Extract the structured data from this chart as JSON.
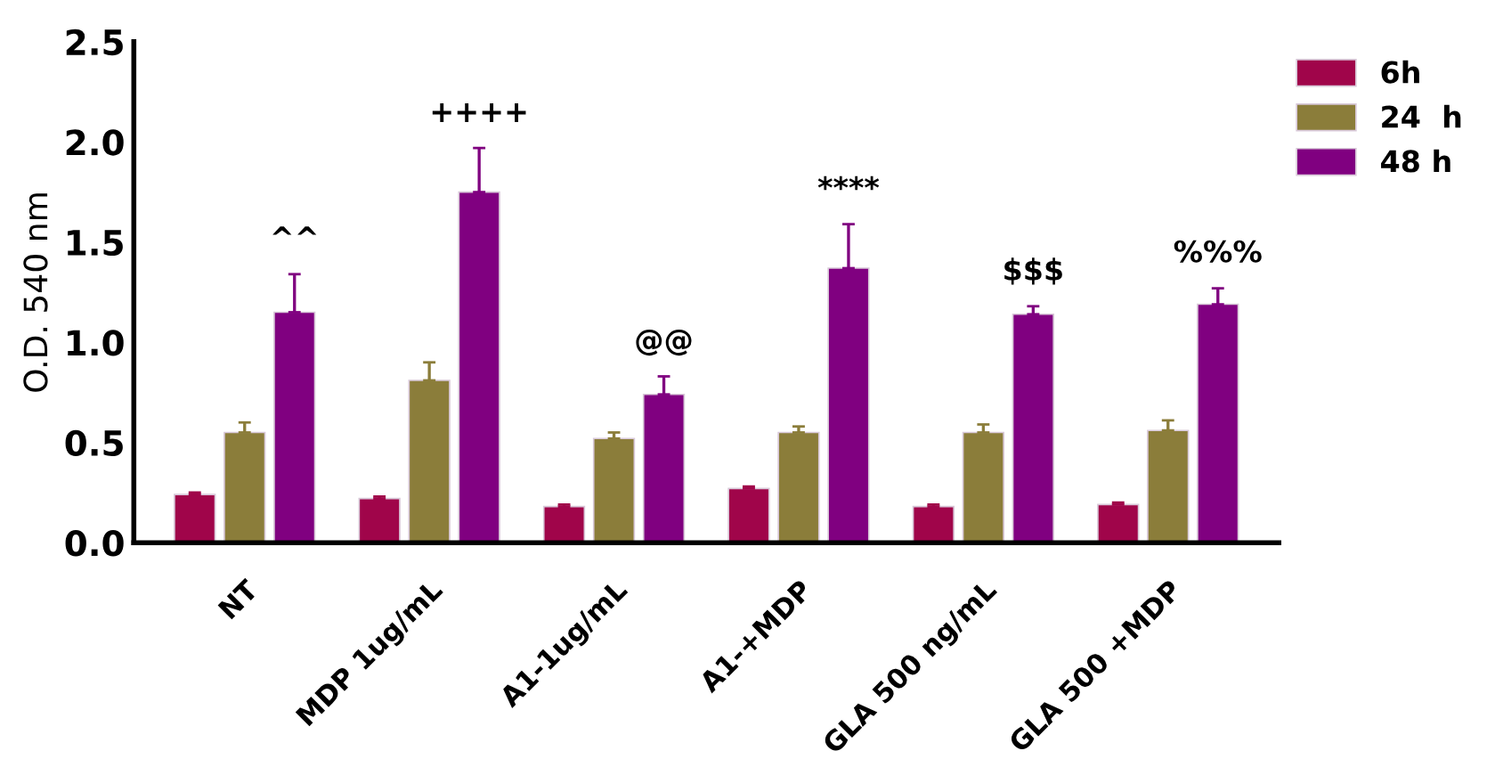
{
  "chart_data": {
    "type": "bar",
    "ylabel": "O.D. 540 nm",
    "categories": [
      "NT",
      "MDP 1ug/mL",
      "A1-1ug/mL",
      "A1-+MDP",
      "GLA 500 ng/mL",
      "GLA 500 +MDP"
    ],
    "series": [
      {
        "name": "6h",
        "color": "#a0054a",
        "values": [
          0.24,
          0.22,
          0.18,
          0.27,
          0.18,
          0.19
        ],
        "errors": [
          [
            0.24,
            0.25
          ],
          [
            0.22,
            0.23
          ],
          [
            0.18,
            0.19
          ],
          [
            0.27,
            0.28
          ],
          [
            0.18,
            0.19
          ],
          [
            0.19,
            0.2
          ]
        ]
      },
      {
        "name": "24  h",
        "color": "#8b7d3a",
        "values": [
          0.55,
          0.81,
          0.52,
          0.55,
          0.55,
          0.56
        ],
        "errors": [
          [
            0.55,
            0.6
          ],
          [
            0.81,
            0.9
          ],
          [
            0.52,
            0.55
          ],
          [
            0.55,
            0.58
          ],
          [
            0.55,
            0.59
          ],
          [
            0.56,
            0.61
          ]
        ]
      },
      {
        "name": "48 h",
        "color": "#800080",
        "values": [
          1.15,
          1.75,
          0.74,
          1.37,
          1.14,
          1.19
        ],
        "errors": [
          [
            1.15,
            1.34
          ],
          [
            1.75,
            1.97
          ],
          [
            0.74,
            0.83
          ],
          [
            1.37,
            1.59
          ],
          [
            1.14,
            1.18
          ],
          [
            1.19,
            1.27
          ]
        ]
      }
    ],
    "ylim": [
      0,
      2.5
    ],
    "yticks": [
      {
        "value": 0,
        "label": "0.0"
      },
      {
        "value": 0.5,
        "label": "0.5"
      },
      {
        "value": 1,
        "label": "1.0"
      },
      {
        "value": 1.5,
        "label": "1.5"
      },
      {
        "value": 2,
        "label": "2.0"
      },
      {
        "value": 2.5,
        "label": "2.5"
      }
    ],
    "grid": false,
    "legend": "top right",
    "annotations": [
      "^^",
      "++++",
      "@@",
      "****",
      "$$$",
      "%%%"
    ]
  }
}
